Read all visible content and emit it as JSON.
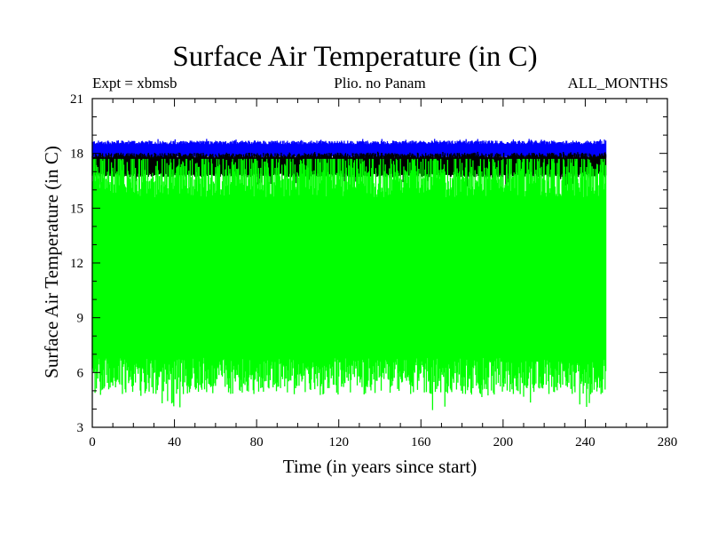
{
  "chart_data": {
    "type": "line",
    "title": "Surface Air Temperature (in C)",
    "subtitle_left": "Expt = xbmsb",
    "subtitle_center": "Plio. no Panam",
    "subtitle_right": "ALL_MONTHS",
    "xlabel": "Time (in years since start)",
    "ylabel": "Surface Air Temperature (in C)",
    "xlim": [
      0,
      280
    ],
    "ylim": [
      3,
      21
    ],
    "xticks": [
      0,
      40,
      80,
      120,
      160,
      200,
      240,
      280
    ],
    "yticks": [
      3,
      6,
      9,
      12,
      15,
      18,
      21
    ],
    "grid": false,
    "legend": "none",
    "series": [
      {
        "color": "#0000ff",
        "x_range": [
          0,
          250
        ],
        "min": 17.7,
        "max": 18.8,
        "approx_low": 17.8,
        "approx_high": 18.6
      },
      {
        "color": "#000000",
        "x_range": [
          0,
          250
        ],
        "min": 16.2,
        "max": 18.1,
        "approx_low": 16.8,
        "approx_high": 17.9
      },
      {
        "color": "#00ff00",
        "x_range": [
          0,
          250
        ],
        "min": 3.9,
        "max": 17.7,
        "approx_low": 5.8,
        "approx_high": 17.0
      }
    ]
  }
}
